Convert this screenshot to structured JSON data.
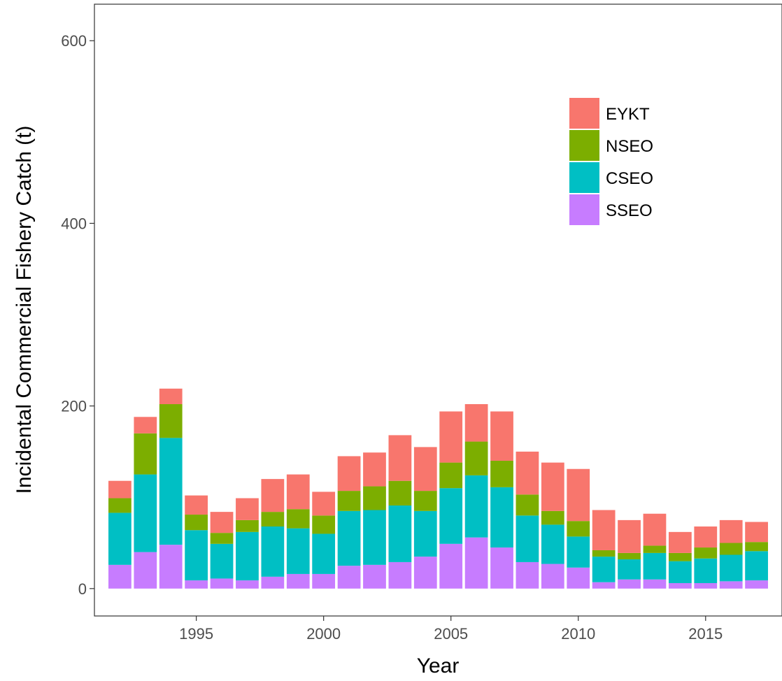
{
  "chart_data": {
    "type": "bar",
    "stacked": true,
    "title": "",
    "xlabel": "Year",
    "ylabel": "Incidental Commercial Fishery Catch (t)",
    "xlim": [
      1991,
      2018
    ],
    "ylim": [
      -30,
      640
    ],
    "x_ticks": [
      1995,
      2000,
      2005,
      2010,
      2015
    ],
    "y_ticks": [
      0,
      200,
      400,
      600
    ],
    "grid": false,
    "legend_position": "top-right",
    "categories": [
      1992,
      1993,
      1994,
      1995,
      1996,
      1997,
      1998,
      1999,
      2000,
      2001,
      2002,
      2003,
      2004,
      2005,
      2006,
      2007,
      2008,
      2009,
      2010,
      2011,
      2012,
      2013,
      2014,
      2015,
      2016,
      2017
    ],
    "series": [
      {
        "name": "SSEO",
        "color": "#C77CFF",
        "values": [
          26,
          40,
          48,
          9,
          11,
          9,
          13,
          16,
          16,
          25,
          26,
          29,
          35,
          49,
          56,
          45,
          29,
          27,
          23,
          7,
          10,
          10,
          6,
          6,
          8,
          9
        ]
      },
      {
        "name": "CSEO",
        "color": "#00BFC4",
        "values": [
          57,
          85,
          117,
          55,
          38,
          53,
          55,
          50,
          44,
          60,
          60,
          62,
          50,
          61,
          68,
          66,
          51,
          43,
          34,
          28,
          22,
          29,
          24,
          27,
          29,
          32
        ]
      },
      {
        "name": "NSEO",
        "color": "#7CAE00",
        "values": [
          16,
          45,
          37,
          17,
          12,
          13,
          16,
          21,
          20,
          22,
          26,
          27,
          22,
          28,
          37,
          29,
          23,
          15,
          17,
          7,
          7,
          8,
          9,
          12,
          13,
          10
        ]
      },
      {
        "name": "EYKT",
        "color": "#F8766D",
        "values": [
          19,
          18,
          17,
          21,
          23,
          24,
          36,
          38,
          26,
          38,
          37,
          50,
          48,
          56,
          41,
          54,
          47,
          53,
          57,
          44,
          36,
          35,
          23,
          23,
          25,
          22
        ]
      }
    ]
  },
  "legend_order": [
    "EYKT",
    "NSEO",
    "CSEO",
    "SSEO"
  ]
}
